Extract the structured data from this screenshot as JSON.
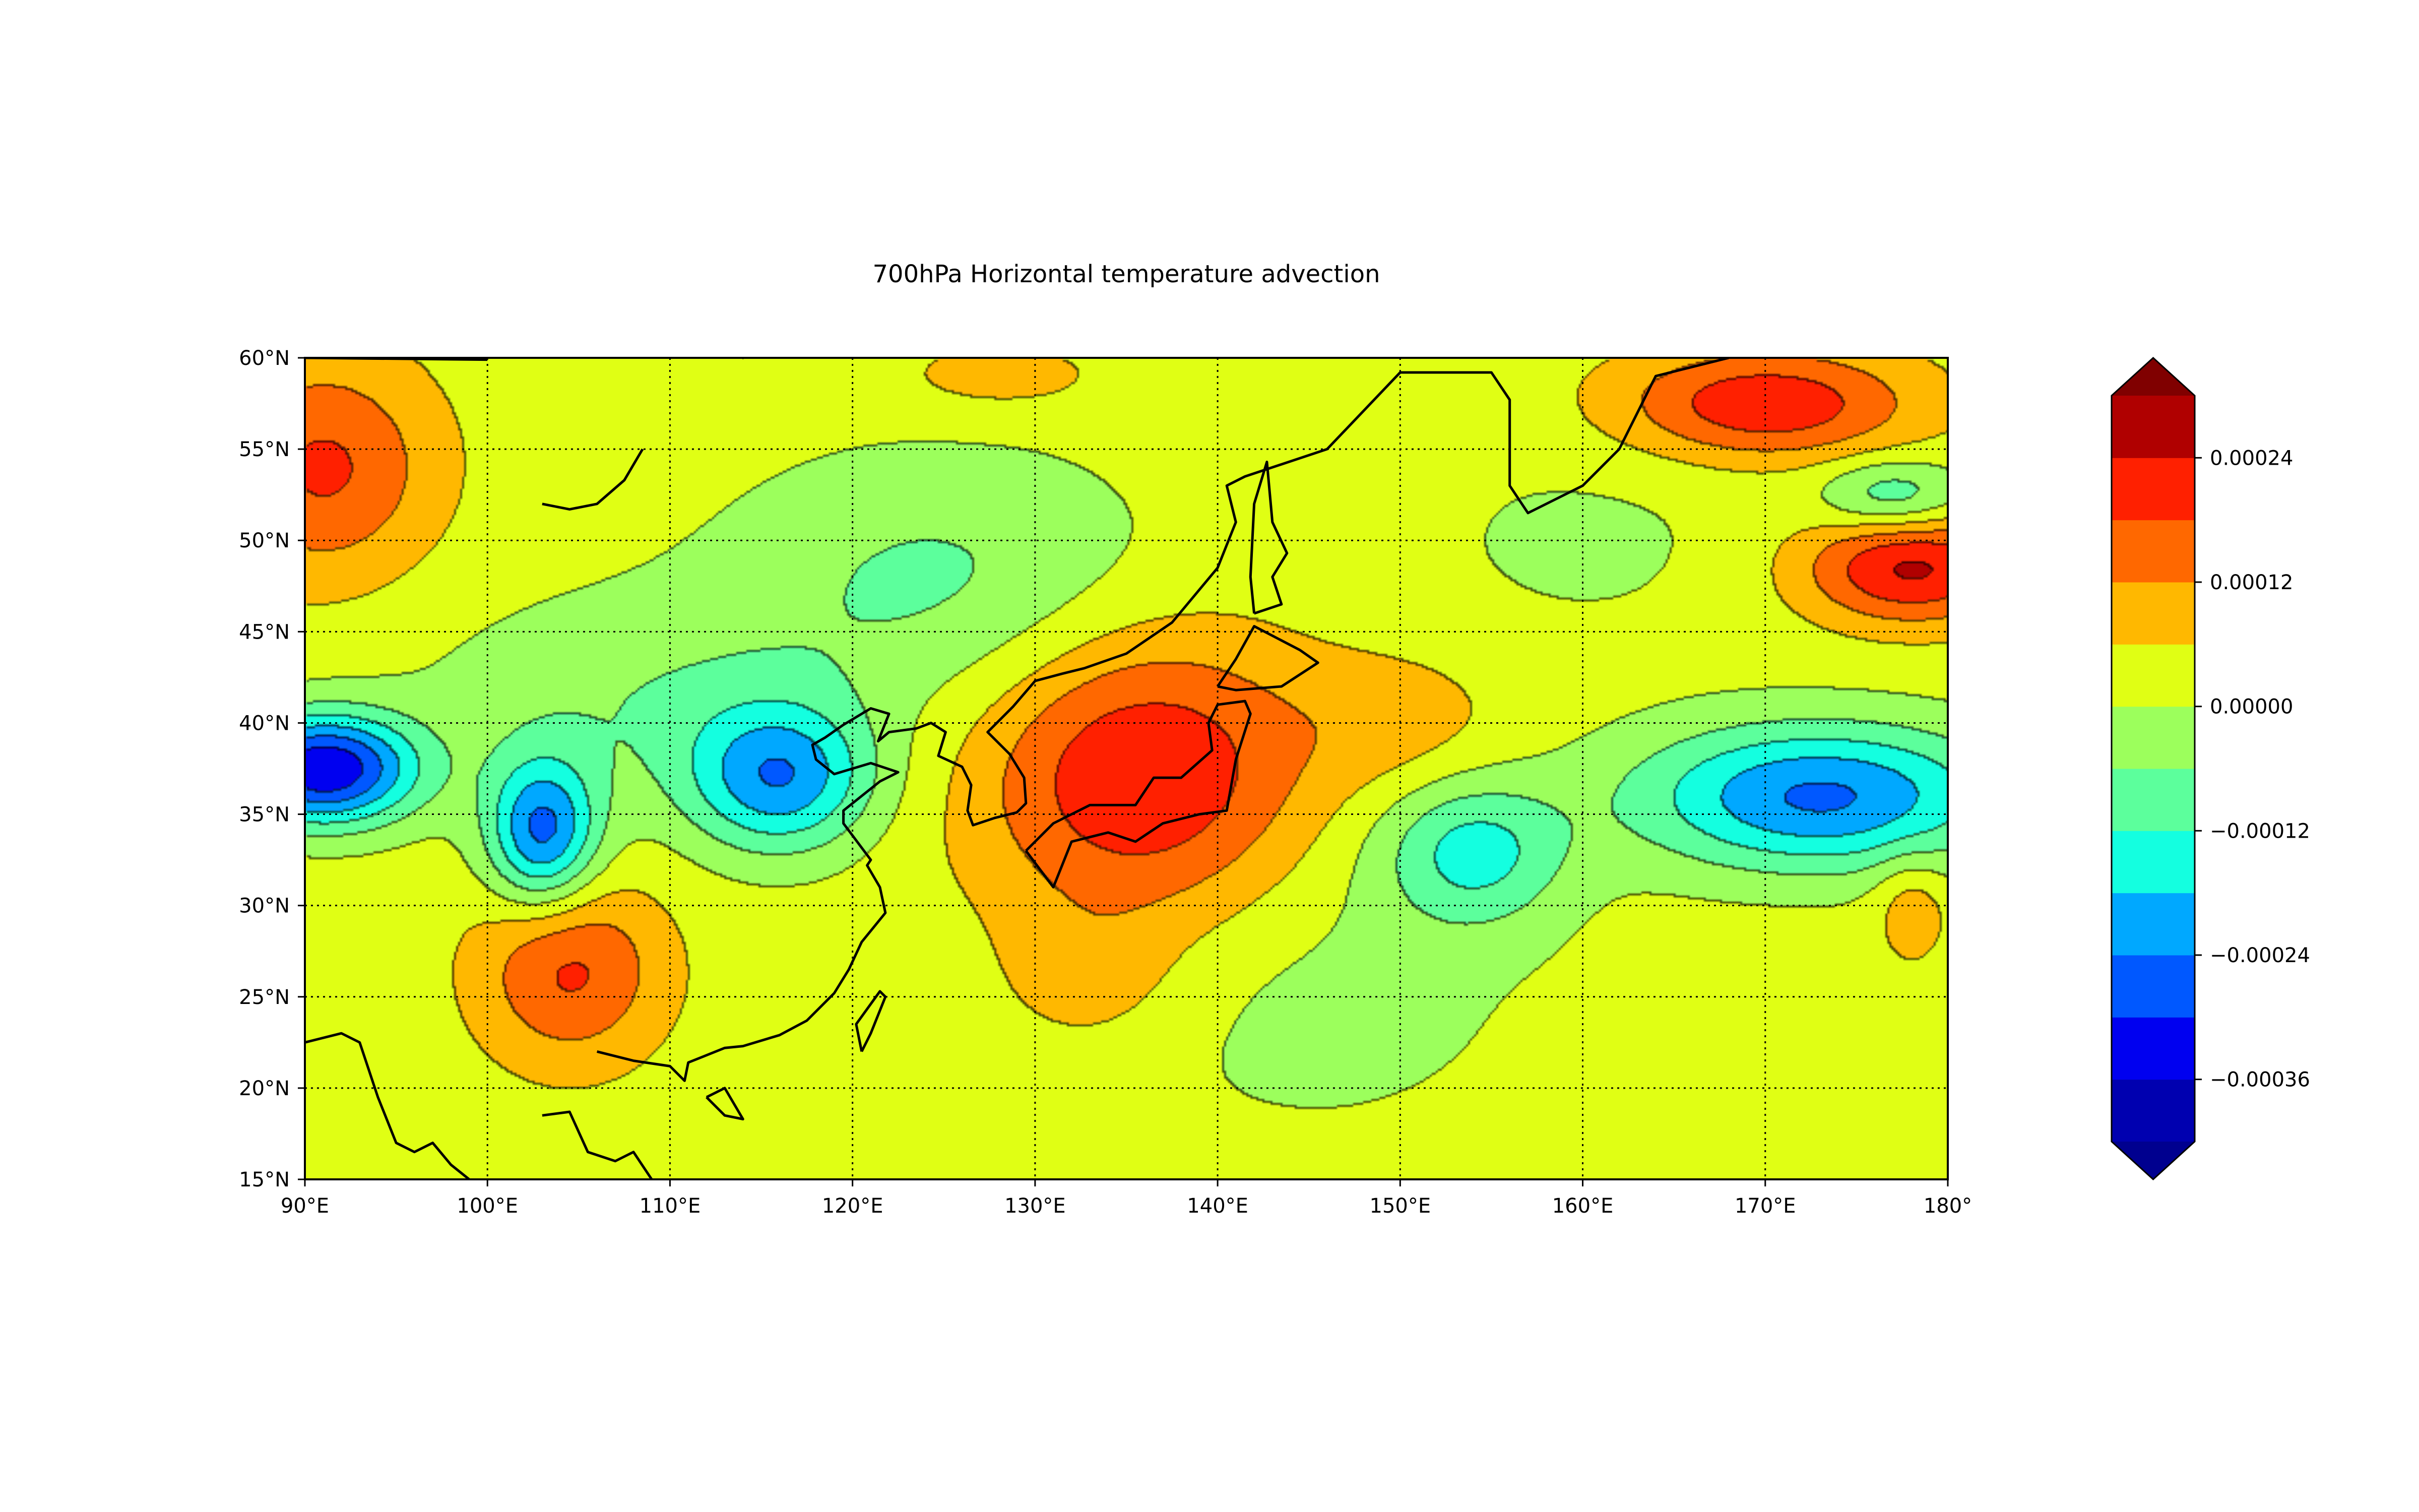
{
  "title": "700hPa Horizontal temperature advection",
  "map": {
    "lon_range": [
      90,
      180
    ],
    "lat_range": [
      15,
      60
    ],
    "grid_lines": "dotted",
    "coastlines": true
  },
  "x_ticks": [
    {
      "value": 90,
      "label": "90°E"
    },
    {
      "value": 100,
      "label": "100°E"
    },
    {
      "value": 110,
      "label": "110°E"
    },
    {
      "value": 120,
      "label": "120°E"
    },
    {
      "value": 130,
      "label": "130°E"
    },
    {
      "value": 140,
      "label": "140°E"
    },
    {
      "value": 150,
      "label": "150°E"
    },
    {
      "value": 160,
      "label": "160°E"
    },
    {
      "value": 170,
      "label": "170°E"
    },
    {
      "value": 180,
      "label": "180°"
    }
  ],
  "y_ticks": [
    {
      "value": 15,
      "label": "15°N"
    },
    {
      "value": 20,
      "label": "20°N"
    },
    {
      "value": 25,
      "label": "25°N"
    },
    {
      "value": 30,
      "label": "30°N"
    },
    {
      "value": 35,
      "label": "35°N"
    },
    {
      "value": 40,
      "label": "40°N"
    },
    {
      "value": 45,
      "label": "45°N"
    },
    {
      "value": 50,
      "label": "50°N"
    },
    {
      "value": 55,
      "label": "55°N"
    },
    {
      "value": 60,
      "label": "60°N"
    }
  ],
  "colorbar": {
    "extend": "both",
    "levels": [
      -0.00042,
      -0.00036,
      -0.0003,
      -0.00024,
      -0.00018,
      -0.00012,
      -6e-05,
      0.0,
      6e-05,
      0.00012,
      0.00018,
      0.00024,
      0.0003
    ],
    "colors": [
      "#0000b0",
      "#0000f0",
      "#0058ff",
      "#00a8ff",
      "#14ffe0",
      "#5cff9c",
      "#9cff5c",
      "#e0ff14",
      "#ffb800",
      "#ff6800",
      "#ff2000",
      "#b00000"
    ],
    "under_color": "#00008f",
    "over_color": "#800000",
    "tick_labels": [
      {
        "value": -0.00036,
        "label": "−0.00036"
      },
      {
        "value": -0.00024,
        "label": "−0.00024"
      },
      {
        "value": -0.00012,
        "label": "−0.00012"
      },
      {
        "value": 0.0,
        "label": "0.00000"
      },
      {
        "value": 0.00012,
        "label": "0.00012"
      },
      {
        "value": 0.00024,
        "label": "0.00024"
      }
    ]
  },
  "field_centers": [
    {
      "lon": 136,
      "lat": 37,
      "value": 0.00022,
      "rlon": 9,
      "rlat": 8
    },
    {
      "lon": 104.5,
      "lat": 26.5,
      "value": 0.00016,
      "rlon": 5,
      "rlat": 5
    },
    {
      "lon": 91,
      "lat": 54,
      "value": 0.00016,
      "rlon": 6,
      "rlat": 6
    },
    {
      "lon": 170,
      "lat": 57.5,
      "value": 0.0002,
      "rlon": 8,
      "rlat": 3
    },
    {
      "lon": 178,
      "lat": 48.5,
      "value": 0.00022,
      "rlon": 6,
      "rlat": 3
    },
    {
      "lon": 150,
      "lat": 40,
      "value": 6e-05,
      "rlon": 6,
      "rlat": 4
    },
    {
      "lon": 133,
      "lat": 26,
      "value": 6e-05,
      "rlon": 5,
      "rlat": 4
    },
    {
      "lon": 128,
      "lat": 59,
      "value": 6e-05,
      "rlon": 6,
      "rlat": 2
    },
    {
      "lon": 178,
      "lat": 30,
      "value": 8e-05,
      "rlon": 2,
      "rlat": 3
    },
    {
      "lon": 91,
      "lat": 37.5,
      "value": -0.00038,
      "rlon": 5,
      "rlat": 3
    },
    {
      "lon": 103,
      "lat": 34,
      "value": -0.00028,
      "rlon": 3,
      "rlat": 4
    },
    {
      "lon": 116,
      "lat": 37,
      "value": -0.00024,
      "rlon": 5,
      "rlat": 4
    },
    {
      "lon": 173,
      "lat": 36,
      "value": -0.00028,
      "rlon": 10,
      "rlat": 4
    },
    {
      "lon": 154,
      "lat": 33,
      "value": -0.00016,
      "rlon": 5,
      "rlat": 4
    },
    {
      "lon": 177,
      "lat": 52.5,
      "value": -0.00014,
      "rlon": 4,
      "rlat": 2
    },
    {
      "lon": 125,
      "lat": 48,
      "value": -0.0001,
      "rlon": 12,
      "rlat": 7
    },
    {
      "lon": 108,
      "lat": 41,
      "value": -8e-05,
      "rlon": 12,
      "rlat": 6
    },
    {
      "lon": 145,
      "lat": 26,
      "value": -5e-05,
      "rlon": 14,
      "rlat": 10
    },
    {
      "lon": 160,
      "lat": 50,
      "value": -4e-05,
      "rlon": 10,
      "rlat": 6
    }
  ],
  "coastlines": [
    [
      [
        90,
        22.5
      ],
      [
        92,
        23
      ],
      [
        93,
        22.5
      ],
      [
        94,
        19.5
      ],
      [
        95,
        17
      ],
      [
        96,
        16.5
      ],
      [
        97,
        17
      ],
      [
        98,
        15.8
      ],
      [
        99,
        15
      ]
    ],
    [
      [
        103,
        18.5
      ],
      [
        104.5,
        18.7
      ],
      [
        105.5,
        16.5
      ],
      [
        107,
        16
      ],
      [
        108,
        16.5
      ],
      [
        109,
        15
      ]
    ],
    [
      [
        106,
        22
      ],
      [
        108,
        21.5
      ],
      [
        110,
        21.2
      ],
      [
        110.8,
        20.4
      ],
      [
        111,
        21.4
      ],
      [
        113,
        22.2
      ],
      [
        114,
        22.3
      ],
      [
        116,
        22.9
      ],
      [
        117.5,
        23.7
      ],
      [
        119,
        25.2
      ],
      [
        119.8,
        26.5
      ],
      [
        120.5,
        28
      ],
      [
        121.8,
        29.6
      ],
      [
        121.5,
        31
      ],
      [
        120.8,
        32.2
      ],
      [
        121,
        32.5
      ],
      [
        119.5,
        34.5
      ],
      [
        119.5,
        35.2
      ],
      [
        120.5,
        36
      ],
      [
        121.5,
        36.8
      ],
      [
        122.5,
        37.3
      ],
      [
        121,
        37.8
      ],
      [
        119,
        37.2
      ],
      [
        118,
        38
      ],
      [
        117.8,
        38.8
      ],
      [
        118.5,
        39.2
      ],
      [
        119.5,
        39.9
      ],
      [
        121,
        40.8
      ],
      [
        122,
        40.5
      ],
      [
        121.4,
        39
      ],
      [
        122,
        39.5
      ],
      [
        123.5,
        39.7
      ],
      [
        124.3,
        40
      ],
      [
        125.1,
        39.5
      ],
      [
        124.7,
        38.2
      ],
      [
        126,
        37.6
      ],
      [
        126.5,
        36.6
      ],
      [
        126.3,
        35.2
      ],
      [
        126.6,
        34.4
      ],
      [
        127.8,
        34.8
      ],
      [
        129,
        35.1
      ],
      [
        129.5,
        35.6
      ],
      [
        129.4,
        37
      ],
      [
        128.6,
        38.3
      ],
      [
        127.4,
        39.5
      ],
      [
        128.8,
        40.9
      ],
      [
        130,
        42.3
      ],
      [
        131.5,
        42.7
      ],
      [
        132.7,
        43
      ],
      [
        135,
        43.8
      ],
      [
        137.5,
        45.5
      ],
      [
        140,
        48.5
      ],
      [
        141,
        51
      ],
      [
        140.5,
        53
      ],
      [
        141.5,
        53.5
      ],
      [
        143,
        54
      ],
      [
        146,
        55
      ],
      [
        150,
        59.2
      ],
      [
        155,
        59.2
      ],
      [
        156,
        57.7
      ],
      [
        156,
        53
      ],
      [
        157,
        51.5
      ],
      [
        160,
        53
      ],
      [
        162,
        55
      ],
      [
        163,
        57
      ],
      [
        164,
        59
      ],
      [
        168,
        60
      ]
    ],
    [
      [
        112,
        19.5
      ],
      [
        113,
        18.5
      ],
      [
        114,
        18.3
      ],
      [
        113,
        20
      ],
      [
        112,
        19.5
      ]
    ],
    [
      [
        120.5,
        22
      ],
      [
        121,
        23
      ],
      [
        121.8,
        25
      ],
      [
        121.5,
        25.3
      ],
      [
        120.2,
        23.5
      ],
      [
        120.5,
        22
      ]
    ],
    [
      [
        129.5,
        33
      ],
      [
        131,
        31
      ],
      [
        132,
        33.5
      ],
      [
        134,
        34
      ],
      [
        135.5,
        33.5
      ],
      [
        137,
        34.5
      ],
      [
        139,
        35
      ],
      [
        140.5,
        35.2
      ],
      [
        141,
        38
      ],
      [
        141.8,
        40.5
      ],
      [
        141.5,
        41.2
      ],
      [
        140,
        41
      ],
      [
        139.5,
        40
      ],
      [
        139.7,
        38.5
      ],
      [
        138,
        37
      ],
      [
        136.5,
        37
      ],
      [
        135.5,
        35.5
      ],
      [
        133,
        35.5
      ],
      [
        131,
        34.5
      ],
      [
        129.5,
        33
      ]
    ],
    [
      [
        140,
        42
      ],
      [
        141,
        41.8
      ],
      [
        143.5,
        42
      ],
      [
        145.5,
        43.3
      ],
      [
        144.5,
        44
      ],
      [
        142,
        45.3
      ],
      [
        141,
        43.5
      ],
      [
        140,
        42
      ]
    ],
    [
      [
        142,
        46
      ],
      [
        143.5,
        46.5
      ],
      [
        143,
        48
      ],
      [
        143.8,
        49.3
      ],
      [
        143,
        51
      ],
      [
        142.7,
        54.3
      ],
      [
        142,
        52
      ],
      [
        141.8,
        48
      ],
      [
        142,
        46
      ]
    ],
    [
      [
        103,
        52
      ],
      [
        104.5,
        51.7
      ],
      [
        106,
        52
      ],
      [
        107.5,
        53.3
      ],
      [
        108.5,
        55
      ]
    ],
    [
      [
        112,
        61
      ],
      [
        114,
        60
      ],
      [
        115,
        60.3
      ]
    ],
    [
      [
        90,
        60
      ],
      [
        100,
        59.9
      ]
    ]
  ]
}
